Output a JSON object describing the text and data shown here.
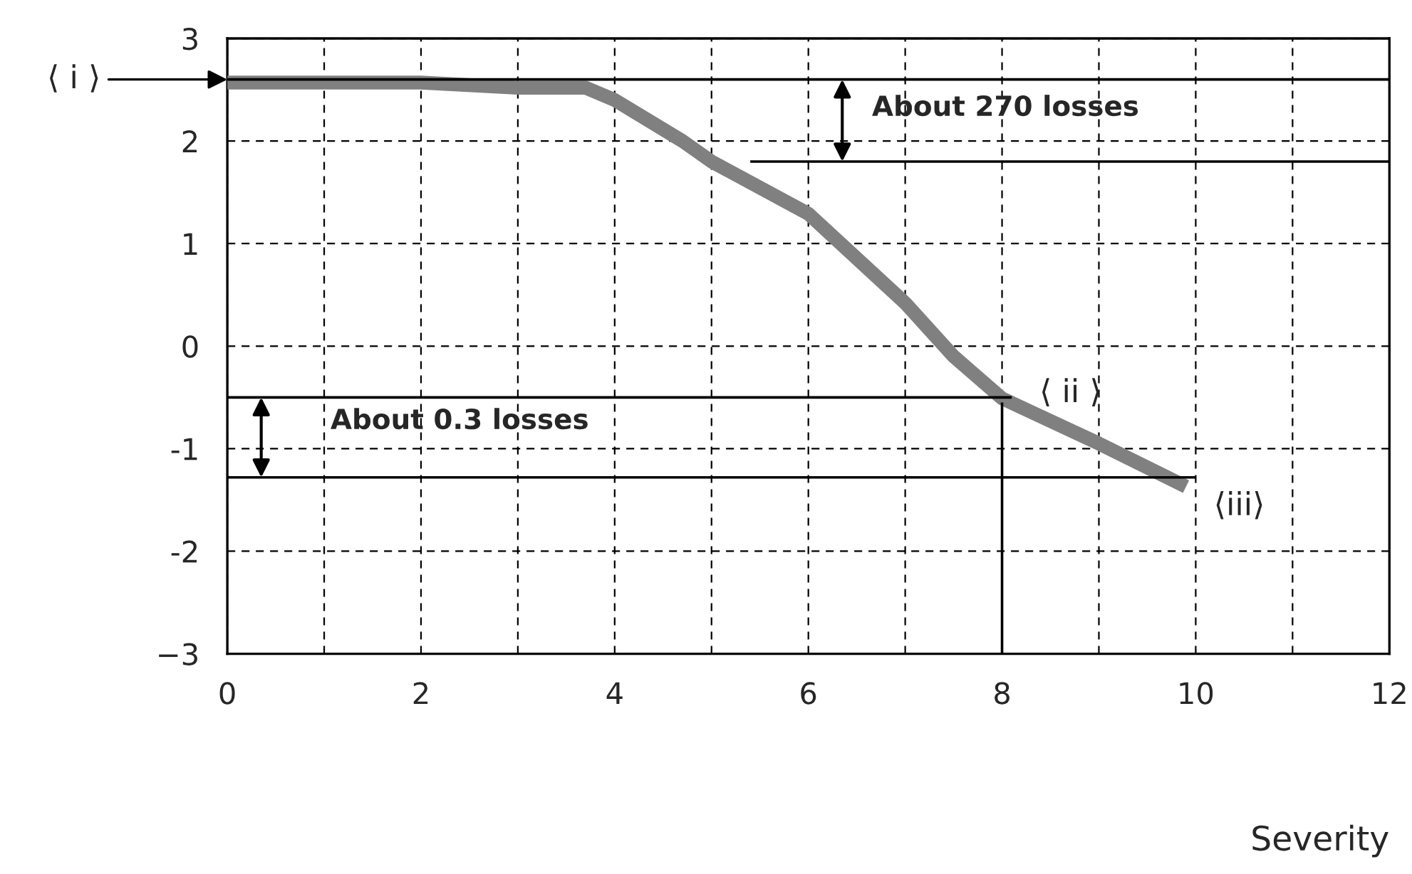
{
  "chart_data": {
    "type": "line",
    "xlabel": "Severity",
    "series": [
      {
        "color": "#808080",
        "x": [
          0,
          1,
          2,
          3,
          3.7,
          4,
          4.7,
          5,
          6,
          7,
          7.5,
          8,
          9,
          9.9
        ],
        "values": [
          2.57,
          2.57,
          2.57,
          2.52,
          2.52,
          2.4,
          2.0,
          1.8,
          1.29,
          0.42,
          -0.1,
          -0.51,
          -0.95,
          -1.37
        ]
      },
      {
        "color": "#000000",
        "x": [
          0,
          12
        ],
        "values": [
          2.6,
          2.6
        ]
      },
      {
        "color": "#000000",
        "x": [
          5.4,
          12
        ],
        "values": [
          1.8,
          1.8
        ]
      },
      {
        "color": "#000000",
        "x": [
          0,
          8.1
        ],
        "values": [
          -0.5,
          -0.5
        ]
      },
      {
        "color": "#000000",
        "x": [
          0,
          10
        ],
        "values": [
          -1.28,
          -1.28
        ]
      },
      {
        "color": "#000000",
        "x": [
          8,
          8
        ],
        "values": [
          -0.55,
          -3
        ]
      }
    ],
    "xlim": [
      0,
      12
    ],
    "ylim": [
      -3,
      3
    ],
    "xticks": [
      0,
      {
        "value": 1,
        "label": null
      },
      2,
      {
        "value": 3,
        "label": null
      },
      4,
      {
        "value": 5,
        "label": null
      },
      6,
      {
        "value": 7,
        "label": null
      },
      8,
      {
        "value": 9,
        "label": null
      },
      10,
      {
        "value": 11,
        "label": null
      },
      12
    ],
    "yticks": [
      {
        "value": -3,
        "label": "−3"
      },
      {
        "value": -2,
        "label": "-2"
      },
      {
        "value": -1,
        "label": "-1"
      },
      0,
      1,
      2,
      3
    ],
    "grid": true,
    "line_style": "solid",
    "annotations": [
      "⟨ i ⟩",
      {
        "text": "About 270 losses",
        "x": 6.35,
        "y": 2.6
      },
      {
        "text": "⟨ ii ⟩",
        "x": 8.1,
        "y": -0.5
      },
      {
        "text": "About 0.3 losses",
        "x": 0.35,
        "y": -0.5
      },
      {
        "text": "⟨iii⟩",
        "x": 9.9,
        "y": -1.37
      }
    ]
  }
}
